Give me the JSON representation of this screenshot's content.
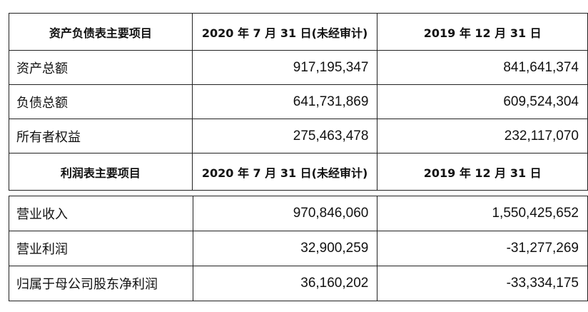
{
  "balance_sheet": {
    "header": [
      "资产负债表主要项目",
      "2020 年 7 月 31 日(未经审计)",
      "2019 年 12 月 31 日"
    ],
    "rows": [
      {
        "label": "资产总额",
        "v2020": "917,195,347",
        "v2019": "841,641,374"
      },
      {
        "label": "负债总额",
        "v2020": "641,731,869",
        "v2019": "609,524,304"
      },
      {
        "label": "所有者权益",
        "v2020": "275,463,478",
        "v2019": "232,117,070"
      }
    ]
  },
  "income_statement": {
    "header": [
      "利润表主要项目",
      "2020 年 7 月 31 日(未经审计)",
      "2019 年 12 月 31 日"
    ],
    "rows": [
      {
        "label": "营业收入",
        "v2020": "970,846,060",
        "v2019": "1,550,425,652"
      },
      {
        "label": "营业利润",
        "v2020": "32,900,259",
        "v2019": "-31,277,269"
      },
      {
        "label": "归属于母公司股东净利润",
        "v2020": "36,160,202",
        "v2019": "-33,334,175"
      }
    ]
  }
}
